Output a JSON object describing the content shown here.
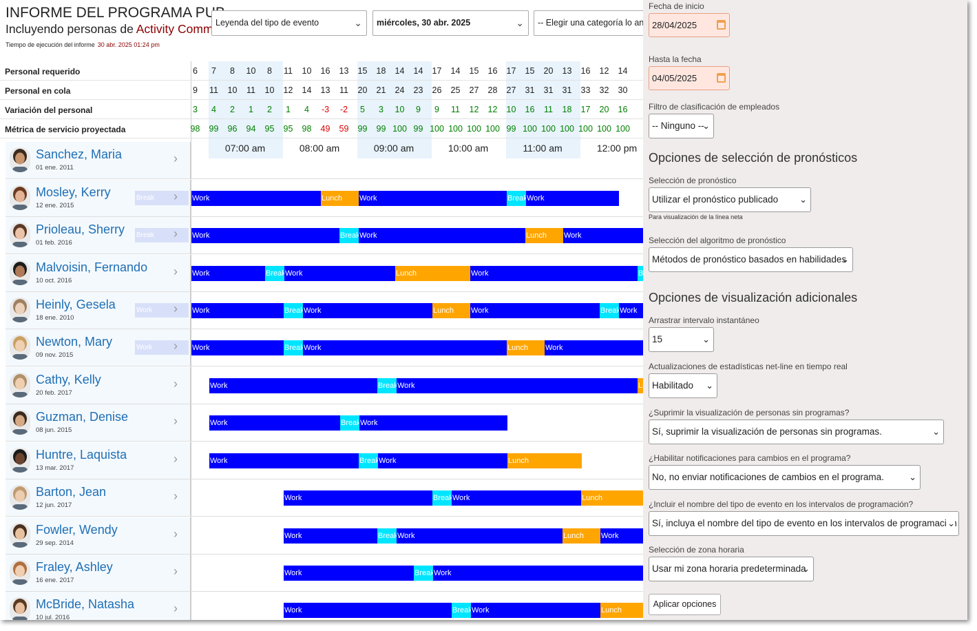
{
  "header": {
    "title": "INFORME DEL PROGRAMA PUB",
    "subtitle_prefix": "Incluyendo personas de ",
    "subtitle_highlight": "Activity Comm",
    "runtime_label": "Tiempo de ejecución del informe",
    "runtime_value": "30 abr. 2025 01:24 pm"
  },
  "toolbar": {
    "legend_select": "Leyenda del tipo de evento",
    "date_select": "miércoles, 30 abr. 2025",
    "category_select": "-- Elegir una categoría lo ante"
  },
  "stats": {
    "rows": [
      {
        "label": "Personal requerido",
        "values": [
          "6",
          "7",
          "8",
          "10",
          "8",
          "11",
          "10",
          "16",
          "13",
          "15",
          "18",
          "14",
          "14",
          "17",
          "14",
          "15",
          "16",
          "17",
          "15",
          "20",
          "13",
          "16",
          "12",
          "14"
        ]
      },
      {
        "label": "Personal en cola",
        "values": [
          "9",
          "11",
          "10",
          "11",
          "10",
          "12",
          "14",
          "13",
          "11",
          "20",
          "21",
          "24",
          "23",
          "26",
          "25",
          "27",
          "28",
          "27",
          "31",
          "31",
          "31",
          "33",
          "32",
          "30"
        ]
      },
      {
        "label": "Variación del personal",
        "values": [
          "3",
          "4",
          "2",
          "1",
          "2",
          "1",
          "4",
          "-3",
          "-2",
          "5",
          "3",
          "10",
          "9",
          "9",
          "11",
          "12",
          "12",
          "10",
          "16",
          "11",
          "18",
          "17",
          "20",
          "16"
        ]
      },
      {
        "label": "Métrica de servicio proyectada",
        "values": [
          "98",
          "99",
          "96",
          "94",
          "95",
          "95",
          "98",
          "49",
          "59",
          "99",
          "99",
          "100",
          "99",
          "100",
          "100",
          "100",
          "100",
          "99",
          "100",
          "100",
          "100",
          "100",
          "100",
          "100"
        ]
      }
    ],
    "hours": [
      "07:00 am",
      "08:00 am",
      "09:00 am",
      "10:00 am",
      "11:00 am",
      "12:00 pm"
    ],
    "positive_color": "#008000",
    "negative_color": "#e00000"
  },
  "people": [
    {
      "name": "Sanchez, Maria",
      "date": "01 ene. 2011",
      "ghost": ""
    },
    {
      "name": "Mosley, Kerry",
      "date": "12 ene. 2015",
      "ghost": "Break"
    },
    {
      "name": "Prioleau, Sherry",
      "date": "01 feb. 2016",
      "ghost": "Break"
    },
    {
      "name": "Malvoisin, Fernando",
      "date": "10 oct. 2016",
      "ghost": ""
    },
    {
      "name": "Heinly, Gesela",
      "date": "18 ene. 2010",
      "ghost": "Work"
    },
    {
      "name": "Newton, Mary",
      "date": "09 nov. 2015",
      "ghost": "Work"
    },
    {
      "name": "Cathy, Kelly",
      "date": "20 feb. 2017",
      "ghost": ""
    },
    {
      "name": "Guzman, Denise",
      "date": "08 jun. 2015",
      "ghost": ""
    },
    {
      "name": "Huntre, Laquista",
      "date": "13 mar. 2017",
      "ghost": ""
    },
    {
      "name": "Barton, Jean",
      "date": "12 jun. 2017",
      "ghost": ""
    },
    {
      "name": "Fowler, Wendy",
      "date": "29 sep. 2014",
      "ghost": ""
    },
    {
      "name": "Fraley, Ashley",
      "date": "16 ene. 2017",
      "ghost": ""
    },
    {
      "name": "McBride, Natasha",
      "date": "10 jul. 2016",
      "ghost": ""
    }
  ],
  "event_labels": {
    "work": "Work",
    "break": "Break",
    "lunch": "Lunch"
  },
  "event_colors": {
    "work": "#0000ff",
    "break": "#00e5ff",
    "lunch": "#ffa500"
  },
  "options": {
    "start_date_label": "Fecha de inicio",
    "start_date": "28/04/2025",
    "end_date_label": "Hasta la fecha",
    "end_date": "04/05/2025",
    "employee_filter_label": "Filtro de clasificación de empleados",
    "employee_filter": "-- Ninguno --",
    "forecast_heading": "Opciones de selección de pronósticos",
    "forecast_label": "Selección de pronóstico",
    "forecast_value": "Utilizar el pronóstico publicado",
    "forecast_note": "Para visualización de la línea neta",
    "algorithm_label": "Selección del algoritmo de pronóstico",
    "algorithm_value": "Métodos de pronóstico basados en habilidades",
    "extra_heading": "Opciones de visualización adicionales",
    "snap_label": "Arrastrar intervalo instantáneo",
    "snap_value": "15",
    "realtime_label": "Actualizaciones de estadísticas net-line en tiempo real",
    "realtime_value": "Habilitado",
    "suppress_label": "¿Suprimir la visualización de personas sin programas?",
    "suppress_value": "Sí, suprimir la visualización de personas sin programas.",
    "notify_label": "¿Habilitar notificaciones para cambios en el programa?",
    "notify_value": "No, no enviar notificaciones de cambios en el programa.",
    "include_label": "¿Incluir el nombre del tipo de evento en los intervalos de programación?",
    "include_value": "Sí, incluya el nombre del tipo de evento en los intervalos de programación",
    "timezone_label": "Selección de zona horaria",
    "timezone_value": "Usar mi zona horaria predeterminada",
    "apply_button": "Aplicar opciones"
  }
}
